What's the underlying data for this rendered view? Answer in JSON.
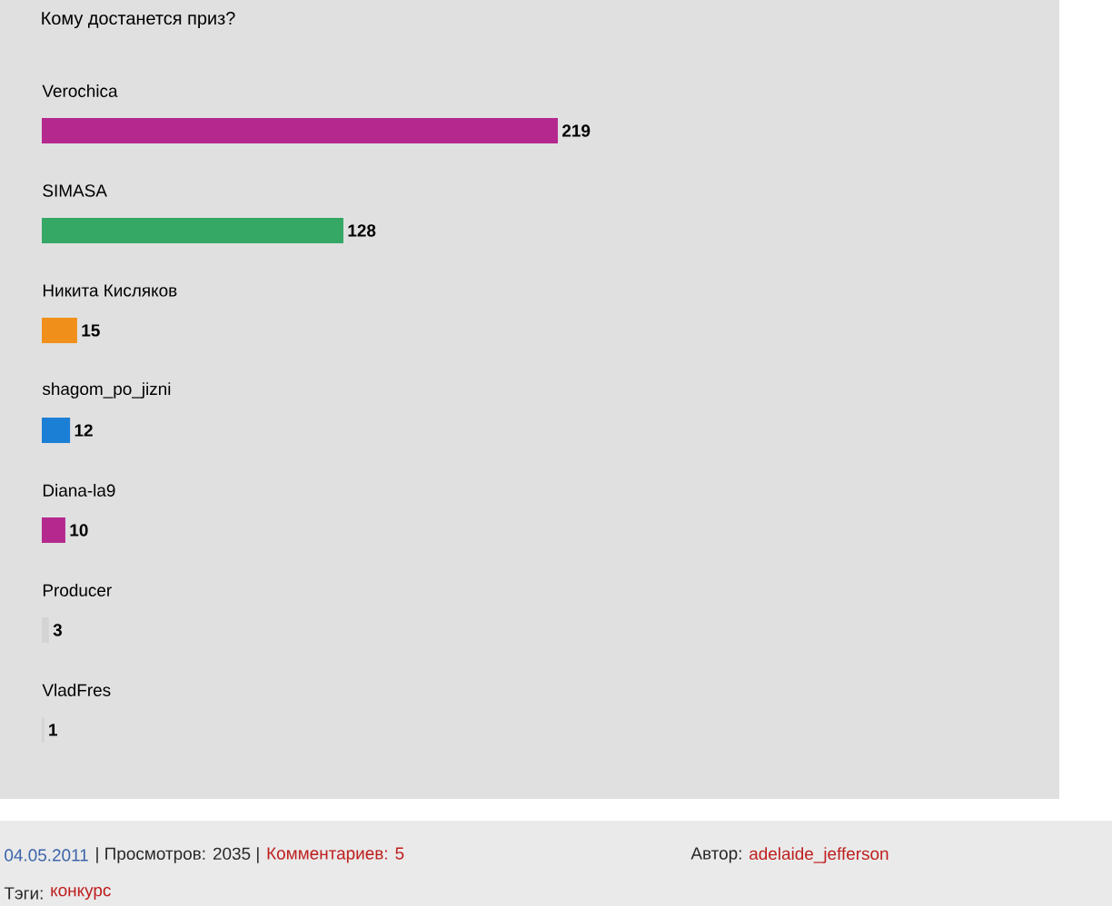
{
  "chart_data": {
    "type": "bar",
    "orientation": "horizontal",
    "title": "Кому достанется приз?",
    "categories": [
      "Verochica",
      "SIMASA",
      "Никита Кисляков",
      "shagom_po_jizni",
      "Diana-la9",
      "Producer",
      "VladFres"
    ],
    "values": [
      219,
      128,
      15,
      12,
      10,
      3,
      1
    ],
    "colors": [
      "#b5298f",
      "#35a866",
      "#f0901a",
      "#1c7fd6",
      "#b5298f",
      "#d4d4d4",
      "#d4d4d4"
    ],
    "data_labels": true,
    "annotations": [
      "04.05.2011",
      "| Просмотров: 2035 |",
      "Комментариев: 5",
      "Автор:",
      "adelaide_jefferson",
      "Тэги:",
      "конкурс"
    ]
  }
}
